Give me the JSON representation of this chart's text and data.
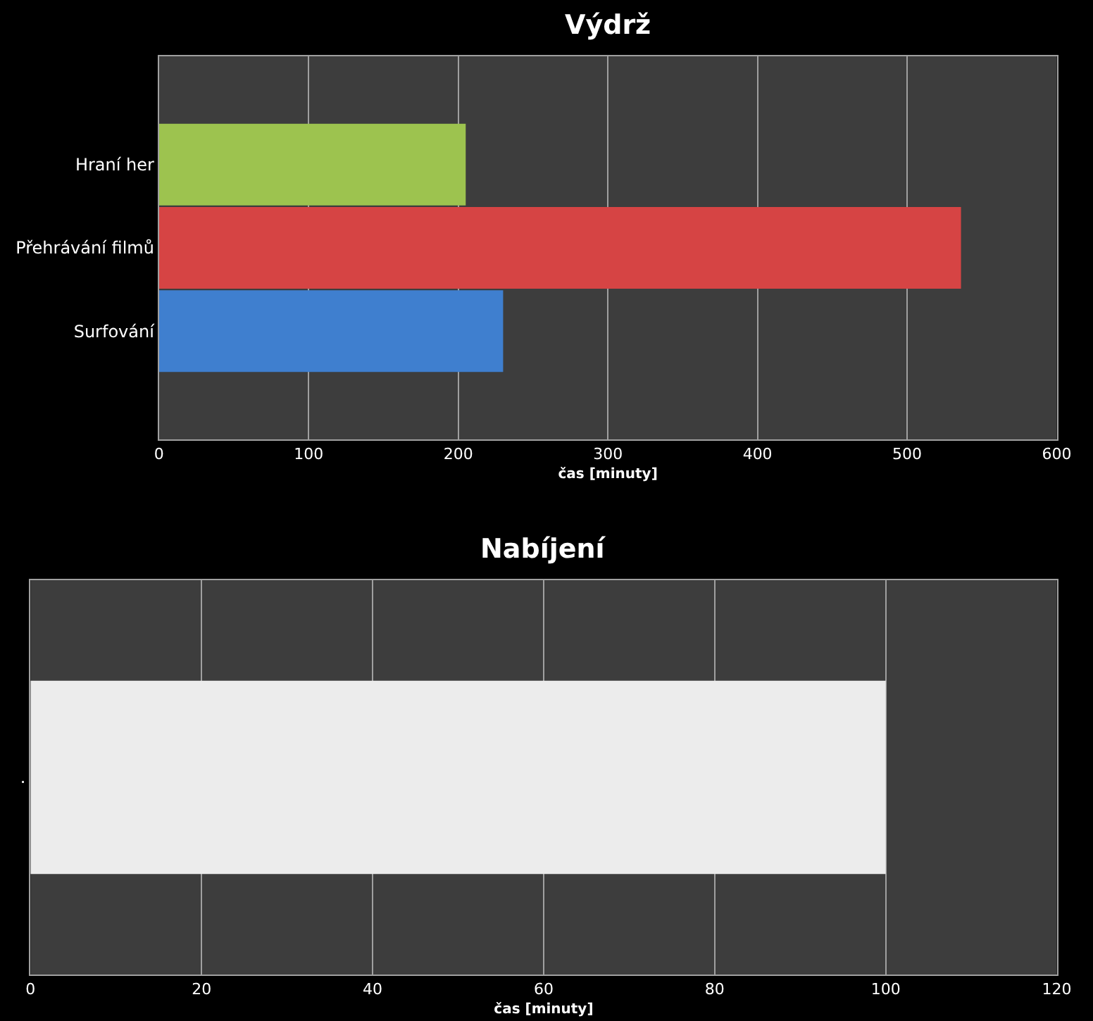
{
  "chart_data": [
    {
      "type": "bar",
      "orientation": "horizontal",
      "title": "Výdrž",
      "xlabel": "čas [minuty]",
      "categories": [
        "Hraní her",
        "Přehrávání filmů",
        "Surfování"
      ],
      "values": [
        205,
        536,
        230
      ],
      "colors": [
        "#9dc34f",
        "#d64444",
        "#3f7fcf"
      ],
      "xlim": [
        0,
        600
      ],
      "xticks": [
        0,
        100,
        200,
        300,
        400,
        500,
        600
      ],
      "grid": "x"
    },
    {
      "type": "bar",
      "orientation": "horizontal",
      "title": "Nabíjení",
      "xlabel": "čas [minuty]",
      "categories": [
        "."
      ],
      "values": [
        100
      ],
      "colors": [
        "#ececec"
      ],
      "xlim": [
        0,
        120
      ],
      "xticks": [
        0,
        20,
        40,
        60,
        80,
        100,
        120
      ],
      "grid": "x"
    }
  ]
}
